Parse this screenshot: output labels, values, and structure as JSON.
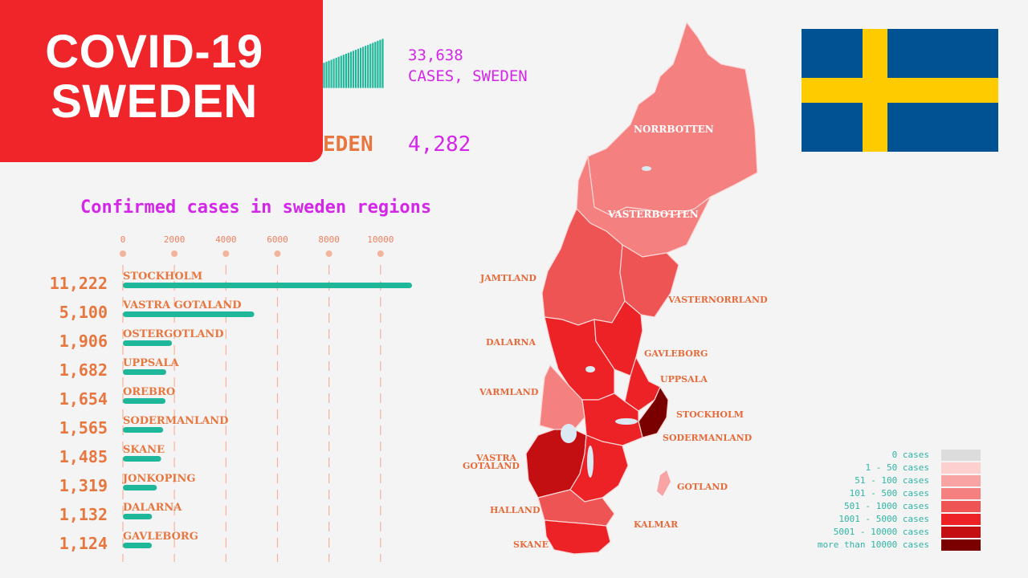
{
  "banner": {
    "line1": "COVID-19",
    "line2": "SWEDEN"
  },
  "summary": {
    "total_cases": "33,638",
    "total_cases_label": "CASES, SWEDEN",
    "deaths_label_visible": "EDEN",
    "deaths_value": "4,282",
    "mini_bars": [
      52,
      54,
      56,
      58,
      60,
      62,
      64,
      66,
      68,
      70,
      72,
      74,
      76,
      78,
      80,
      82,
      84,
      86,
      88,
      90,
      92,
      94,
      96,
      98,
      100
    ]
  },
  "colors": {
    "bar": "#1fb79a",
    "value_text": "#e8763f",
    "title": "#d426e8",
    "grid": "#f2b49c"
  },
  "chart_data": {
    "type": "bar",
    "title": "Confirmed cases in sweden regions",
    "orientation": "horizontal",
    "xlim": [
      0,
      11222
    ],
    "x_ticks": [
      0,
      2000,
      4000,
      6000,
      8000,
      10000
    ],
    "categories": [
      "STOCKHOLM",
      "VASTRA GOTALAND",
      "OSTERGOTLAND",
      "UPPSALA",
      "OREBRO",
      "SODERMANLAND",
      "SKANE",
      "JONKOPING",
      "DALARNA",
      "GAVLEBORG"
    ],
    "values": [
      11222,
      5100,
      1906,
      1682,
      1654,
      1565,
      1485,
      1319,
      1132,
      1124
    ],
    "value_labels": [
      "11,222",
      "5,100",
      "1,906",
      "1,682",
      "1,654",
      "1,565",
      "1,485",
      "1,319",
      "1,132",
      "1,124"
    ]
  },
  "map": {
    "labels_white": [
      "NORRBOTTEN",
      "VASTERBOTTEN"
    ],
    "labels": [
      "JAMTLAND",
      "VASTERNORRLAND",
      "DALARNA",
      "GAVLEBORG",
      "UPPSALA",
      "VARMLAND",
      "STOCKHOLM",
      "SODERMANLAND",
      "VASTRA",
      "GOTALAND",
      "GOTLAND",
      "HALLAND",
      "KALMAR",
      "SKANE"
    ]
  },
  "legend": {
    "items": [
      {
        "label": "0 cases",
        "color": "#dcdcdc"
      },
      {
        "label": "1 - 50 cases",
        "color": "#fdd0d0"
      },
      {
        "label": "51 - 100 cases",
        "color": "#f8a4a4"
      },
      {
        "label": "101 - 500 cases",
        "color": "#f58080"
      },
      {
        "label": "501 - 1000 cases",
        "color": "#ef5454"
      },
      {
        "label": "1001 - 5000 cases",
        "color": "#ec2227"
      },
      {
        "label": "5001 - 10000 cases",
        "color": "#c40f12"
      },
      {
        "label": "more than 10000 cases",
        "color": "#7a0000"
      }
    ]
  },
  "flag": {
    "blue": "#005293",
    "yellow": "#fecb00"
  }
}
